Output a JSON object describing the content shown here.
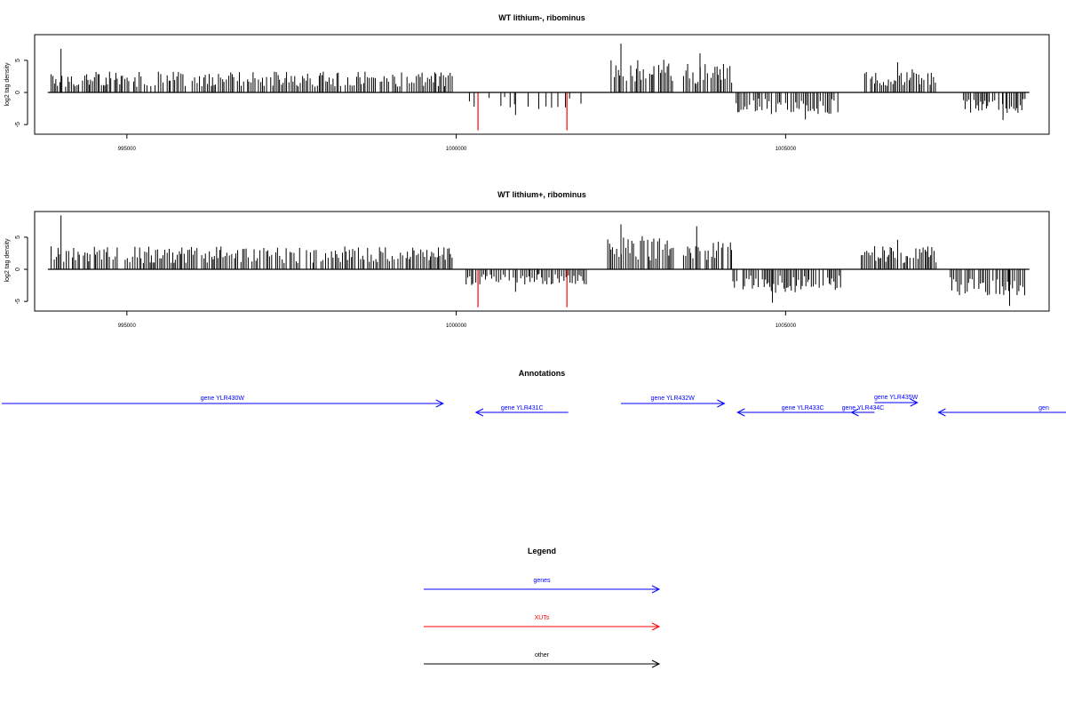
{
  "chart_data": [
    {
      "type": "bar",
      "title": "WT lithium-, ribominus",
      "xlabel": "",
      "ylabel": "log2 tag density",
      "xlim": [
        993600,
        1009000
      ],
      "ylim": [
        -6.5,
        9
      ],
      "xticks": [
        995000,
        1000000,
        1005000
      ],
      "xtick_labels": [
        "995000",
        "1000000",
        "1005000"
      ],
      "yticks": [
        -5,
        0,
        5
      ],
      "ytick_labels": [
        "-5",
        "0",
        "5"
      ],
      "baseline": {
        "x_start": 993800,
        "x_end": 1008700,
        "y": 0
      },
      "grid": false,
      "series": [
        {
          "strand": "plus",
          "color": "#000000",
          "segments": [
            {
              "x_start": 993850,
              "x_end": 999950,
              "typical": 2.5,
              "max": 6.8,
              "max_at": 994000
            },
            {
              "x_start": 1002350,
              "x_end": 1003300,
              "typical": 4.0,
              "max": 7.6,
              "max_at": 1002500
            },
            {
              "x_start": 1003450,
              "x_end": 1004200,
              "typical": 3.6,
              "max": 6.1,
              "max_at": 1003700
            },
            {
              "x_start": 1006200,
              "x_end": 1007300,
              "typical": 2.8,
              "max": 4.7,
              "max_at": 1006700
            }
          ]
        },
        {
          "strand": "minus",
          "color": "#000000",
          "segments": [
            {
              "x_start": 1000200,
              "x_end": 1002000,
              "typical": -2.0,
              "min": -3.5,
              "min_at": 1000900,
              "sparse": true
            },
            {
              "x_start": 1004250,
              "x_end": 1005800,
              "typical": -2.6,
              "min": -4.2,
              "min_at": 1005300
            },
            {
              "x_start": 1007700,
              "x_end": 1008650,
              "typical": -2.5,
              "min": -4.3,
              "min_at": 1008300
            }
          ]
        },
        {
          "strand": "highlight",
          "color": "#ff0000",
          "points": [
            {
              "x": 1000330,
              "y": -5.9
            },
            {
              "x": 1001680,
              "y": -5.9
            }
          ]
        }
      ]
    },
    {
      "type": "bar",
      "title": "WT lithium+, ribominus",
      "xlabel": "",
      "ylabel": "log2 tag density",
      "xlim": [
        993600,
        1009000
      ],
      "ylim": [
        -6.5,
        9
      ],
      "xticks": [
        995000,
        1000000,
        1005000
      ],
      "xtick_labels": [
        "995000",
        "1000000",
        "1005000"
      ],
      "yticks": [
        -5,
        0,
        5
      ],
      "ytick_labels": [
        "-5",
        "0",
        "5"
      ],
      "baseline": {
        "x_start": 993800,
        "x_end": 1008700,
        "y": 0
      },
      "grid": false,
      "series": [
        {
          "strand": "plus",
          "color": "#000000",
          "segments": [
            {
              "x_start": 993850,
              "x_end": 999950,
              "typical": 2.8,
              "max": 8.4,
              "max_at": 994000
            },
            {
              "x_start": 1002300,
              "x_end": 1003300,
              "typical": 4.0,
              "max": 7.0,
              "max_at": 1002500
            },
            {
              "x_start": 1003450,
              "x_end": 1004200,
              "typical": 3.6,
              "max": 6.7,
              "max_at": 1003650
            },
            {
              "x_start": 1006150,
              "x_end": 1007300,
              "typical": 2.8,
              "max": 4.6,
              "max_at": 1006700
            }
          ]
        },
        {
          "strand": "minus",
          "color": "#000000",
          "segments": [
            {
              "x_start": 1000150,
              "x_end": 1002000,
              "typical": -2.0,
              "min": -3.5,
              "min_at": 1000900
            },
            {
              "x_start": 1004200,
              "x_end": 1005850,
              "typical": -2.8,
              "min": -5.2,
              "min_at": 1004800
            },
            {
              "x_start": 1007500,
              "x_end": 1008650,
              "typical": -3.2,
              "min": -5.7,
              "min_at": 1008400
            }
          ]
        },
        {
          "strand": "highlight",
          "color": "#ff0000",
          "points": [
            {
              "x": 1000330,
              "y": -5.9
            },
            {
              "x": 1001680,
              "y": -5.9
            }
          ]
        }
      ]
    },
    {
      "type": "annotation-track",
      "title": "Annotations",
      "xlim": [
        993600,
        1009000
      ],
      "features": [
        {
          "label": "gene YLR430W",
          "start": 993100,
          "end": 999800,
          "strand": "+",
          "color": "#0000ff",
          "row": 1
        },
        {
          "label": "gene YLR431C",
          "start": 1000300,
          "end": 1001700,
          "strand": "-",
          "color": "#0000ff",
          "row": 2
        },
        {
          "label": "gene YLR432W",
          "start": 1002500,
          "end": 1004070,
          "strand": "+",
          "color": "#0000ff",
          "row": 1
        },
        {
          "label": "gene YLR433C",
          "start": 1004270,
          "end": 1006250,
          "strand": "-",
          "color": "#0000ff",
          "row": 2
        },
        {
          "label": "gene YLR434C",
          "start": 1006000,
          "end": 1006350,
          "strand": "-",
          "color": "#0000ff",
          "row": 2
        },
        {
          "label": "gene YLR435W",
          "start": 1006350,
          "end": 1007000,
          "strand": "+",
          "color": "#0000ff",
          "row": 0
        },
        {
          "label": "gen",
          "start": 1007320,
          "end": 1009500,
          "strand": "-",
          "color": "#0000ff",
          "row": 2
        }
      ]
    },
    {
      "type": "legend",
      "title": "Legend",
      "entries": [
        {
          "label": "genes",
          "color": "#0000ff"
        },
        {
          "label": "XUTs",
          "color": "#ff0000"
        },
        {
          "label": "other",
          "color": "#000000"
        }
      ]
    }
  ]
}
